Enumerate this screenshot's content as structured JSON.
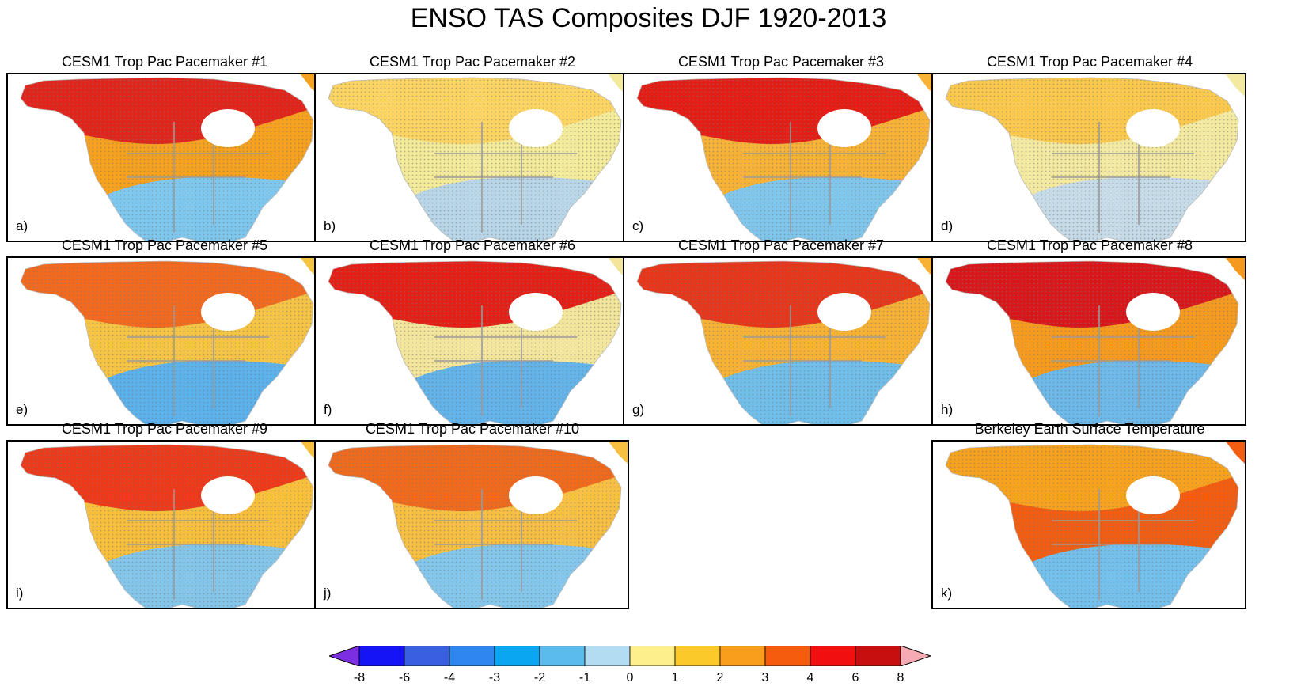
{
  "title": "ENSO TAS Composites DJF 1920-2013",
  "panels": [
    {
      "title": "CESM1 Trop Pac Pacemaker #1",
      "label": "a)",
      "north": "#e0261c",
      "mid": "#f7a21e",
      "south": "#7ec7ee"
    },
    {
      "title": "CESM1 Trop Pac Pacemaker #2",
      "label": "b)",
      "north": "#fbd463",
      "mid": "#f3ea9a",
      "south": "#b8d6e8"
    },
    {
      "title": "CESM1 Trop Pac Pacemaker #3",
      "label": "c)",
      "north": "#e31e16",
      "mid": "#f8b236",
      "south": "#80c6ec"
    },
    {
      "title": "CESM1 Trop Pac Pacemaker #4",
      "label": "d)",
      "north": "#f9c84d",
      "mid": "#f4e9a1",
      "south": "#c6dbe8"
    },
    {
      "title": "CESM1 Trop Pac Pacemaker #5",
      "label": "e)",
      "north": "#f36a1e",
      "mid": "#f6c445",
      "south": "#5cb2ec"
    },
    {
      "title": "CESM1 Trop Pac Pacemaker #6",
      "label": "f)",
      "north": "#e51e16",
      "mid": "#f4e59d",
      "south": "#62b4ea"
    },
    {
      "title": "CESM1 Trop Pac Pacemaker #7",
      "label": "g)",
      "north": "#e8361a",
      "mid": "#f7b235",
      "south": "#70bfea"
    },
    {
      "title": "CESM1 Trop Pac Pacemaker #8",
      "label": "h)",
      "north": "#d9171a",
      "mid": "#f59a1f",
      "south": "#6cb9ea"
    },
    {
      "title": "CESM1 Trop Pac Pacemaker #9",
      "label": "i)",
      "north": "#ec3a1a",
      "mid": "#f8bf3c",
      "south": "#84c5ea"
    },
    {
      "title": "CESM1 Trop Pac Pacemaker #10",
      "label": "j)",
      "north": "#f06a1e",
      "mid": "#f8c043",
      "south": "#84c6ec"
    },
    {
      "title": "Berkeley Earth Surface Temperature",
      "label": "k)",
      "north": "#f7a21e",
      "mid": "#f25d12",
      "south": "#74c0ec"
    }
  ],
  "colorbar": {
    "min_color": "#7b2fe0",
    "max_color": "#f7aab4",
    "colors": [
      "#1414f4",
      "#3a5fe0",
      "#2f86f0",
      "#0aa6f2",
      "#5bbcec",
      "#b3dbf2",
      "#fdf08c",
      "#fcc92a",
      "#f99d1c",
      "#f65c0e",
      "#f20f0f",
      "#c80f0f"
    ],
    "ticks": [
      "-8",
      "-6",
      "-4",
      "-3",
      "-2",
      "-1",
      "0",
      "1",
      "2",
      "3",
      "4",
      "6",
      "8"
    ]
  }
}
